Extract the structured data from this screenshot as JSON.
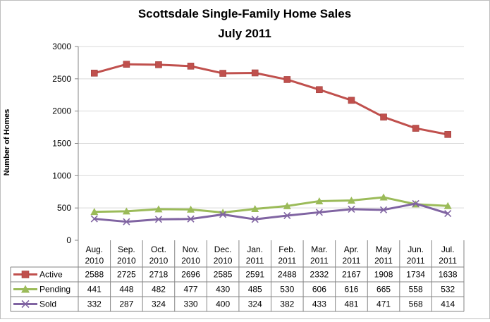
{
  "chart_data": {
    "type": "line",
    "title": "Scottsdale Single-Family Home Sales",
    "subtitle": "July 2011",
    "ylabel": "Number of Homes",
    "xlabel": "",
    "ylim": [
      0,
      3000
    ],
    "yticks": [
      "0",
      "500",
      "1000",
      "1500",
      "2000",
      "2500",
      "3000"
    ],
    "grid": true,
    "legend": "data-table",
    "categories": [
      [
        "Aug.",
        "2010"
      ],
      [
        "Sep.",
        "2010"
      ],
      [
        "Oct.",
        "2010"
      ],
      [
        "Nov.",
        "2010"
      ],
      [
        "Dec.",
        "2010"
      ],
      [
        "Jan.",
        "2011"
      ],
      [
        "Feb.",
        "2011"
      ],
      [
        "Mar.",
        "2011"
      ],
      [
        "Apr.",
        "2011"
      ],
      [
        "May",
        "2011"
      ],
      [
        "Jun.",
        "2011"
      ],
      [
        "Jul.",
        "2011"
      ]
    ],
    "series": [
      {
        "name": "Active",
        "color": "#c0504d",
        "marker": "square",
        "values": [
          2588,
          2725,
          2718,
          2696,
          2585,
          2591,
          2488,
          2332,
          2167,
          1908,
          1734,
          1638
        ]
      },
      {
        "name": "Pending",
        "color": "#9bbb59",
        "marker": "triangle",
        "values": [
          441,
          448,
          482,
          477,
          430,
          485,
          530,
          606,
          616,
          665,
          558,
          532
        ]
      },
      {
        "name": "Sold",
        "color": "#8064a2",
        "marker": "x",
        "values": [
          332,
          287,
          324,
          330,
          400,
          324,
          382,
          433,
          481,
          471,
          568,
          414
        ]
      }
    ]
  }
}
